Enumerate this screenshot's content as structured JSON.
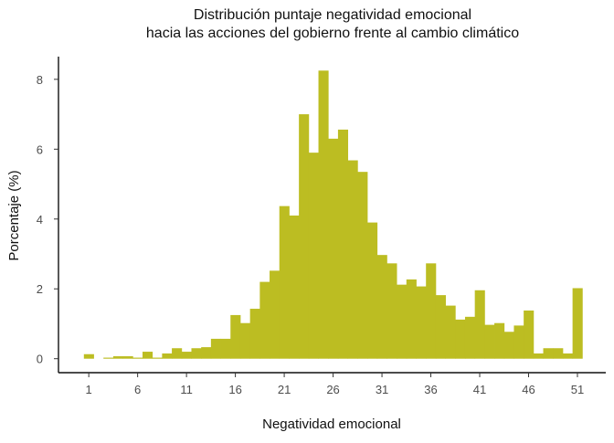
{
  "chart_data": {
    "type": "histogram",
    "title_lines": [
      "Distribución puntaje negatividad emocional",
      "hacia las acciones del gobierno frente al cambio climático"
    ],
    "xlabel": "Negatividad emocional",
    "ylabel": "Porcentaje (%)",
    "bar_color": "#BCBD22",
    "x_ticks": [
      1,
      6,
      11,
      16,
      21,
      26,
      31,
      36,
      41,
      46,
      51
    ],
    "y_ticks": [
      0,
      2,
      4,
      6,
      8
    ],
    "xlim": [
      -2.1,
      53.9
    ],
    "ylim": [
      -0.4,
      8.65
    ],
    "bin_width": 1,
    "x": [
      1,
      2,
      3,
      4,
      5,
      6,
      7,
      8,
      9,
      10,
      11,
      12,
      13,
      14,
      15,
      16,
      17,
      18,
      19,
      20,
      21,
      22,
      23,
      24,
      25,
      26,
      27,
      28,
      29,
      30,
      31,
      32,
      33,
      34,
      35,
      36,
      37,
      38,
      39,
      40,
      41,
      42,
      43,
      44,
      45,
      46,
      47,
      48,
      49,
      50,
      51
    ],
    "values": [
      0.13,
      0,
      0.03,
      0.07,
      0.07,
      0.03,
      0.2,
      0.03,
      0.15,
      0.3,
      0.2,
      0.3,
      0.33,
      0.57,
      0.57,
      1.25,
      1.02,
      1.43,
      2.2,
      2.52,
      4.37,
      4.1,
      7.0,
      5.9,
      8.25,
      6.3,
      6.56,
      5.68,
      5.35,
      3.9,
      2.97,
      2.73,
      2.12,
      2.27,
      2.07,
      2.73,
      1.82,
      1.52,
      1.12,
      1.2,
      1.96,
      0.97,
      1.02,
      0.77,
      0.95,
      1.38,
      0.15,
      0.3,
      0.3,
      0.15,
      2.02
    ]
  }
}
